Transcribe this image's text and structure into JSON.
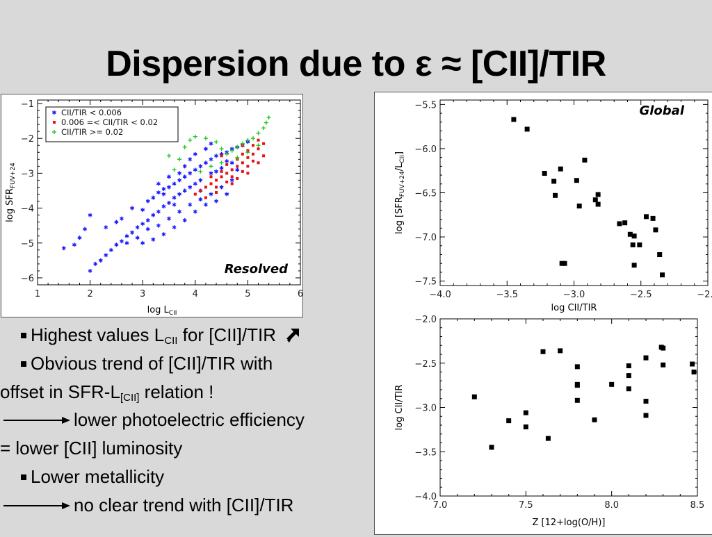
{
  "slide": {
    "title": "Dispersion due to ε ≈ [CII]/TIR"
  },
  "bullets": {
    "b1": "Highest values L",
    "b1_sub": "CII",
    "b1_tail": " for [CII]/TIR",
    "b1_icon": "up-right-arrow-icon",
    "b2": "Obvious trend of [CII]/TIR with",
    "b2_cont": "offset in SFR-L",
    "b2_sub": "[CII]",
    "b2_tail": " relation !",
    "b3": "lower photoelectric efficiency",
    "b4": "= lower [CII] luminosity",
    "b5": "Lower metallicity",
    "b6": "no clear trend with [CII]/TIR"
  },
  "chart_data": [
    {
      "type": "scatter",
      "label": "Resolved",
      "xlabel": "log L",
      "xlabel_sub": "CII",
      "ylabel": "log SFR",
      "ylabel_sub": "FUV+24",
      "xlim": [
        1,
        6
      ],
      "ylim": [
        -6.2,
        -0.9
      ],
      "xticks": [
        "1",
        "2",
        "3",
        "4",
        "5",
        "6"
      ],
      "yticks": [
        "−1",
        "−2",
        "−3",
        "−4",
        "−5",
        "−6"
      ],
      "legend_position": "top-left",
      "colors": {
        "blue": "#1a1aff",
        "red": "#e81010",
        "green": "#22c722"
      },
      "series": [
        {
          "name": "CII/TIR < 0.006",
          "marker": "asterisk",
          "color": "#1a1aff",
          "points": [
            [
              1.5,
              -5.15
            ],
            [
              1.7,
              -5.05
            ],
            [
              1.8,
              -4.85
            ],
            [
              1.9,
              -4.6
            ],
            [
              2.0,
              -5.8
            ],
            [
              2.1,
              -5.6
            ],
            [
              2.2,
              -5.5
            ],
            [
              2.3,
              -5.35
            ],
            [
              2.4,
              -5.2
            ],
            [
              2.5,
              -5.05
            ],
            [
              2.6,
              -4.95
            ],
            [
              2.7,
              -4.8
            ],
            [
              2.8,
              -4.7
            ],
            [
              2.9,
              -4.55
            ],
            [
              3.0,
              -4.45
            ],
            [
              3.1,
              -4.35
            ],
            [
              3.2,
              -4.2
            ],
            [
              3.3,
              -4.1
            ],
            [
              3.4,
              -3.95
            ],
            [
              3.5,
              -3.85
            ],
            [
              3.6,
              -3.7
            ],
            [
              3.7,
              -3.6
            ],
            [
              3.8,
              -3.5
            ],
            [
              3.9,
              -3.4
            ],
            [
              4.0,
              -3.3
            ],
            [
              2.3,
              -4.55
            ],
            [
              2.6,
              -4.3
            ],
            [
              2.8,
              -4.0
            ],
            [
              3.0,
              -4.05
            ],
            [
              3.1,
              -3.8
            ],
            [
              3.2,
              -3.7
            ],
            [
              3.3,
              -3.55
            ],
            [
              3.4,
              -3.45
            ],
            [
              3.5,
              -3.4
            ],
            [
              3.6,
              -3.3
            ],
            [
              3.7,
              -3.2
            ],
            [
              3.8,
              -3.1
            ],
            [
              3.9,
              -3.0
            ],
            [
              4.0,
              -2.9
            ],
            [
              4.1,
              -2.8
            ],
            [
              4.2,
              -2.7
            ],
            [
              4.3,
              -2.6
            ],
            [
              4.4,
              -2.5
            ],
            [
              4.5,
              -2.45
            ],
            [
              4.6,
              -2.4
            ],
            [
              4.7,
              -2.3
            ],
            [
              4.8,
              -2.25
            ],
            [
              4.9,
              -2.2
            ],
            [
              5.0,
              -2.1
            ],
            [
              3.1,
              -4.6
            ],
            [
              3.3,
              -4.5
            ],
            [
              3.5,
              -4.3
            ],
            [
              3.7,
              -4.1
            ],
            [
              3.9,
              -3.9
            ],
            [
              4.1,
              -3.75
            ],
            [
              4.3,
              -3.6
            ],
            [
              4.5,
              -3.4
            ],
            [
              4.7,
              -3.2
            ],
            [
              2.9,
              -4.85
            ],
            [
              2.7,
              -5.0
            ],
            [
              3.0,
              -5.0
            ],
            [
              3.2,
              -4.9
            ],
            [
              3.4,
              -4.75
            ],
            [
              3.6,
              -4.55
            ],
            [
              3.8,
              -4.35
            ],
            [
              4.0,
              -4.1
            ],
            [
              4.2,
              -3.9
            ],
            [
              4.4,
              -3.8
            ],
            [
              4.6,
              -3.6
            ],
            [
              3.9,
              -2.6
            ],
            [
              4.0,
              -2.45
            ],
            [
              4.2,
              -2.3
            ],
            [
              4.3,
              -2.15
            ],
            [
              4.1,
              -3.2
            ],
            [
              4.3,
              -3.0
            ],
            [
              4.5,
              -2.85
            ],
            [
              4.7,
              -2.7
            ],
            [
              4.4,
              -2.95
            ],
            [
              3.8,
              -2.8
            ],
            [
              3.7,
              -3.0
            ],
            [
              3.5,
              -3.1
            ],
            [
              3.3,
              -3.3
            ],
            [
              3.4,
              -3.6
            ],
            [
              3.6,
              -3.9
            ],
            [
              2.0,
              -4.2
            ],
            [
              2.5,
              -4.4
            ],
            [
              4.8,
              -2.9
            ],
            [
              4.6,
              -2.65
            ],
            [
              4.1,
              -3.5
            ]
          ]
        },
        {
          "name": "0.006 =< CII/TIR < 0.02",
          "marker": "square",
          "color": "#e81010",
          "points": [
            [
              4.0,
              -3.6
            ],
            [
              4.1,
              -3.5
            ],
            [
              4.2,
              -3.4
            ],
            [
              4.3,
              -3.3
            ],
            [
              4.4,
              -3.2
            ],
            [
              4.5,
              -3.1
            ],
            [
              4.6,
              -3.0
            ],
            [
              4.7,
              -2.9
            ],
            [
              4.8,
              -2.8
            ],
            [
              4.9,
              -2.7
            ],
            [
              5.0,
              -2.55
            ],
            [
              5.1,
              -2.45
            ],
            [
              5.2,
              -2.3
            ],
            [
              5.3,
              -2.15
            ],
            [
              4.3,
              -3.1
            ],
            [
              4.5,
              -2.95
            ],
            [
              4.6,
              -2.75
            ],
            [
              4.8,
              -2.6
            ],
            [
              4.9,
              -2.45
            ],
            [
              5.0,
              -2.35
            ],
            [
              5.1,
              -2.2
            ],
            [
              5.2,
              -2.05
            ],
            [
              4.4,
              -3.4
            ],
            [
              4.6,
              -3.25
            ],
            [
              4.7,
              -3.1
            ],
            [
              4.9,
              -2.95
            ],
            [
              5.0,
              -2.8
            ],
            [
              5.1,
              -2.65
            ],
            [
              4.2,
              -3.7
            ],
            [
              4.4,
              -3.55
            ],
            [
              4.7,
              -3.3
            ],
            [
              4.8,
              -3.15
            ],
            [
              5.0,
              -3.0
            ],
            [
              5.2,
              -2.7
            ],
            [
              5.3,
              -2.5
            ],
            [
              4.9,
              -2.2
            ],
            [
              4.5,
              -2.5
            ]
          ]
        },
        {
          "name": "CII/TIR >= 0.02",
          "marker": "plus",
          "color": "#22c722",
          "points": [
            [
              5.4,
              -1.4
            ],
            [
              5.35,
              -1.55
            ],
            [
              5.3,
              -1.7
            ],
            [
              5.2,
              -1.85
            ],
            [
              5.1,
              -2.0
            ],
            [
              5.0,
              -2.05
            ],
            [
              4.9,
              -2.15
            ],
            [
              4.8,
              -2.25
            ],
            [
              4.7,
              -2.35
            ],
            [
              3.8,
              -2.25
            ],
            [
              3.9,
              -2.05
            ],
            [
              4.0,
              -1.95
            ],
            [
              4.2,
              -2.0
            ],
            [
              4.4,
              -2.1
            ],
            [
              4.5,
              -2.3
            ],
            [
              4.6,
              -2.45
            ],
            [
              3.7,
              -2.6
            ],
            [
              3.5,
              -2.5
            ],
            [
              3.6,
              -2.9
            ],
            [
              4.3,
              -2.8
            ],
            [
              4.1,
              -2.95
            ],
            [
              4.5,
              -2.7
            ],
            [
              5.0,
              -2.4
            ],
            [
              5.2,
              -2.2
            ],
            [
              4.8,
              -2.55
            ]
          ]
        }
      ]
    },
    {
      "type": "scatter",
      "label": "Global",
      "xlabel": "log CII/TIR",
      "ylabel": "log [SFR",
      "ylabel_sub": "FUV+24",
      "ylabel_mid": "/L",
      "ylabel_sub2": "CII",
      "ylabel_tail": "]",
      "xlim": [
        -4.0,
        -2.0
      ],
      "ylim": [
        -7.55,
        -5.45
      ],
      "xticks": [
        "−4.0",
        "−3.5",
        "−3.0",
        "−2.5",
        "−2.0"
      ],
      "yticks": [
        "−5.5",
        "−6.0",
        "−6.5",
        "−7.0",
        "−7.5"
      ],
      "x": [
        -3.45,
        -3.35,
        -3.22,
        -3.15,
        -3.14,
        -3.1,
        -3.07,
        -2.98,
        -2.96,
        -2.92,
        -2.84,
        -2.82,
        -2.82,
        -2.66,
        -2.62,
        -2.58,
        -2.56,
        -2.55,
        -2.51,
        -2.46,
        -2.41,
        -2.39,
        -2.36,
        -2.34,
        -2.55,
        -3.09
      ],
      "y": [
        -5.67,
        -5.78,
        -6.28,
        -6.37,
        -6.53,
        -6.23,
        -7.3,
        -6.36,
        -6.65,
        -6.13,
        -6.58,
        -6.52,
        -6.63,
        -6.85,
        -6.84,
        -6.97,
        -7.09,
        -6.99,
        -7.09,
        -6.77,
        -6.79,
        -6.92,
        -7.2,
        -7.43,
        -7.32,
        -7.3
      ]
    },
    {
      "type": "scatter",
      "xlabel": "Z [12+log(O/H)]",
      "ylabel": "log CII/TIR",
      "xlim": [
        7.0,
        8.5
      ],
      "ylim": [
        -4.0,
        -2.0
      ],
      "xticks": [
        "7.0",
        "7.5",
        "8.0",
        "8.5"
      ],
      "yticks": [
        "−2.0",
        "−2.5",
        "−3.0",
        "−3.5",
        "−4.0"
      ],
      "x": [
        7.2,
        7.3,
        7.4,
        7.5,
        7.5,
        7.6,
        7.63,
        7.7,
        7.8,
        7.8,
        7.8,
        7.8,
        7.9,
        8.0,
        8.1,
        8.1,
        8.1,
        8.2,
        8.2,
        8.2,
        8.2,
        8.29,
        8.3,
        8.3,
        8.47,
        8.48
      ],
      "y": [
        -2.88,
        -3.45,
        -3.15,
        -3.06,
        -3.22,
        -2.37,
        -3.35,
        -2.36,
        -2.54,
        -2.74,
        -2.92,
        -2.75,
        -3.14,
        -2.74,
        -2.53,
        -2.64,
        -2.79,
        -2.44,
        -2.44,
        -2.93,
        -3.09,
        -2.32,
        -2.33,
        -2.52,
        -2.51,
        -2.6
      ]
    }
  ]
}
